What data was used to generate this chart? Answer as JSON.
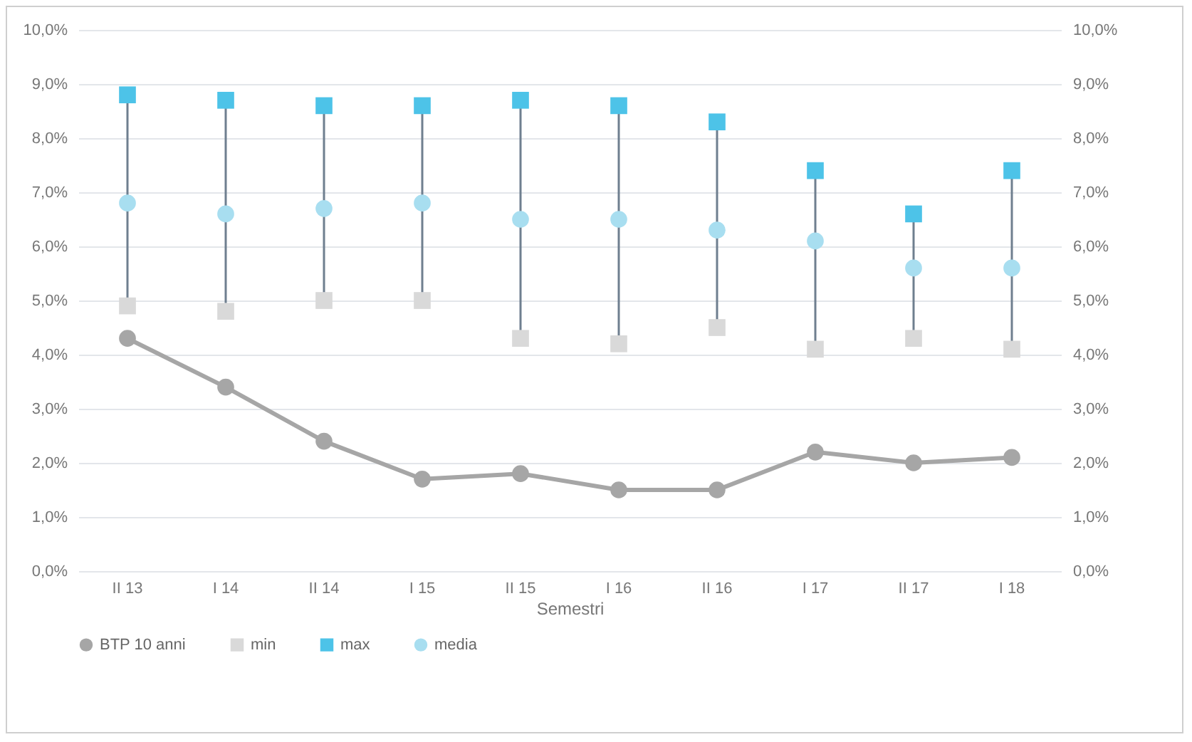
{
  "chart_data": {
    "type": "line",
    "xlabel": "Semestri",
    "categories": [
      "II 13",
      "I 14",
      "II 14",
      "I 15",
      "II 15",
      "I 16",
      "II 16",
      "I 17",
      "II 17",
      "I 18"
    ],
    "series": [
      {
        "name": "BTP 10 anni",
        "marker": "circle",
        "color": "#a6a6a6",
        "values": [
          4.3,
          3.4,
          2.4,
          1.7,
          1.8,
          1.5,
          1.5,
          2.2,
          2.0,
          2.1
        ]
      },
      {
        "name": "min",
        "type": "scatter",
        "marker": "square",
        "color": "#d9d9d9",
        "values": [
          4.9,
          4.8,
          5.0,
          5.0,
          4.3,
          4.2,
          4.5,
          4.1,
          4.3,
          4.1
        ]
      },
      {
        "name": "max",
        "type": "scatter",
        "marker": "square",
        "color": "#4dc3e8",
        "values": [
          8.8,
          8.7,
          8.6,
          8.6,
          8.7,
          8.6,
          8.3,
          7.4,
          6.6,
          7.4
        ]
      },
      {
        "name": "media",
        "type": "scatter",
        "marker": "circle",
        "color": "#a8def0",
        "values": [
          6.8,
          6.6,
          6.7,
          6.8,
          6.5,
          6.5,
          6.3,
          6.1,
          5.6,
          5.6
        ]
      }
    ],
    "ylim": [
      0,
      10
    ],
    "yticks": [
      {
        "value": 0,
        "label": "0,0%"
      },
      {
        "value": 1,
        "label": "1,0%"
      },
      {
        "value": 2,
        "label": "2,0%"
      },
      {
        "value": 3,
        "label": "3,0%"
      },
      {
        "value": 4,
        "label": "4,0%"
      },
      {
        "value": 5,
        "label": "5,0%"
      },
      {
        "value": 6,
        "label": "6,0%"
      },
      {
        "value": 7,
        "label": "7,0%"
      },
      {
        "value": 8,
        "label": "8,0%"
      },
      {
        "value": 9,
        "label": "9,0%"
      },
      {
        "value": 10,
        "label": "10,0%"
      }
    ],
    "y2lim": [
      0,
      10
    ],
    "y2ticks": [
      {
        "value": 0,
        "label": "0,0%"
      },
      {
        "value": 1,
        "label": "1,0%"
      },
      {
        "value": 2,
        "label": "2,0%"
      },
      {
        "value": 3,
        "label": "3,0%"
      },
      {
        "value": 4,
        "label": "4,0%"
      },
      {
        "value": 5,
        "label": "5,0%"
      },
      {
        "value": 6,
        "label": "6,0%"
      },
      {
        "value": 7,
        "label": "7,0%"
      },
      {
        "value": 8,
        "label": "8,0%"
      },
      {
        "value": 9,
        "label": "9,0%"
      },
      {
        "value": 10,
        "label": "10,0%"
      }
    ],
    "grid": "y",
    "legend": "bottom"
  }
}
